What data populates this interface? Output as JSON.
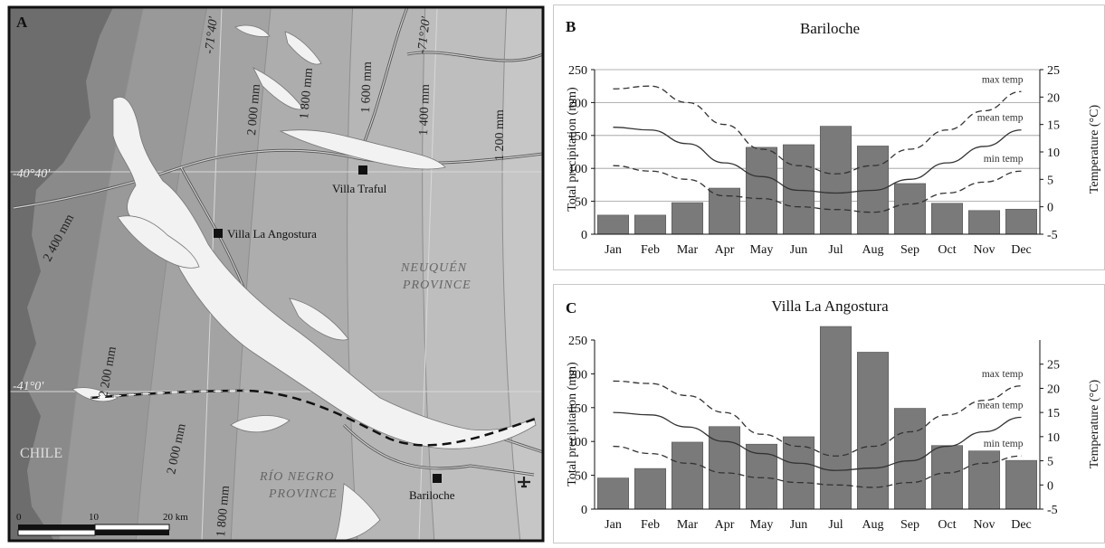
{
  "map": {
    "panel_letter": "A",
    "longitudes": [
      "-71°40'",
      "-71°20'"
    ],
    "latitudes": [
      "-40°40'",
      "-41°0'"
    ],
    "isohyets": [
      "2 400 mm",
      "2 200 mm",
      "2 000 mm",
      "1 800 mm",
      "1 600 mm",
      "1 400 mm",
      "1 200 mm",
      "2 000 mm",
      "1 800 mm"
    ],
    "places": [
      "Villa Traful",
      "Villa La Angostura",
      "Bariloche"
    ],
    "regions": [
      "NEUQUÉN",
      "PROVINCE",
      "RÍO NEGRO",
      "PROVINCE",
      "CHILE"
    ],
    "scale_labels": [
      "0",
      "10",
      "20 km"
    ],
    "colors": {
      "dark": "#6d6d6d",
      "mid": "#a8a8a8",
      "light": "#c8c8c8",
      "lake": "#f2f2f2"
    },
    "icons": [
      "airport-icon",
      "town-marker-icon"
    ]
  },
  "chart_data": [
    {
      "panel_letter": "B",
      "type": "bar",
      "title": "Bariloche",
      "categories": [
        "Jan",
        "Feb",
        "Mar",
        "Apr",
        "May",
        "Jun",
        "Jul",
        "Aug",
        "Sep",
        "Oct",
        "Nov",
        "Dec"
      ],
      "values": [
        29,
        29,
        48,
        70,
        132,
        136,
        164,
        134,
        77,
        47,
        36,
        38
      ],
      "ylabel": "Total precipitation (mm)",
      "ylim": [
        0,
        250
      ],
      "yticks": [
        "0",
        "50",
        "100",
        "150",
        "200",
        "250"
      ],
      "y2label": "Temperature (°C)",
      "y2lim": [
        -5,
        25
      ],
      "y2ticks": [
        "-5",
        "0",
        "5",
        "10",
        "15",
        "20",
        "25"
      ],
      "lines": [
        {
          "name": "max temp",
          "style": "dashed",
          "values": [
            21.5,
            22,
            19,
            15,
            10.5,
            7.5,
            6,
            7.5,
            10.5,
            14,
            17.5,
            21
          ]
        },
        {
          "name": "mean temp",
          "style": "solid",
          "values": [
            14.5,
            14,
            11.5,
            8,
            5.5,
            3,
            2.5,
            3,
            5,
            8,
            11,
            14
          ]
        },
        {
          "name": "min temp",
          "style": "dashed",
          "values": [
            7.5,
            6.5,
            5,
            2,
            1.5,
            0,
            -0.5,
            -1,
            0.5,
            2.5,
            4.5,
            6.5
          ]
        }
      ],
      "bar_color": "#7a7a7a",
      "grid": true
    },
    {
      "panel_letter": "C",
      "type": "bar",
      "title": "Villa La Angostura",
      "categories": [
        "Jan",
        "Feb",
        "Mar",
        "Apr",
        "May",
        "Jun",
        "Jul",
        "Aug",
        "Sep",
        "Oct",
        "Nov",
        "Dec"
      ],
      "values": [
        46,
        60,
        99,
        122,
        96,
        107,
        270,
        232,
        149,
        94,
        86,
        72
      ],
      "ylabel": "Total precipitation (mm)",
      "ylim": [
        0,
        250
      ],
      "yticks": [
        "0",
        "50",
        "100",
        "150",
        "200",
        "250"
      ],
      "y2label": "Temperature (°C)",
      "y2lim": [
        -5,
        30
      ],
      "y2ticks": [
        "-5",
        "0",
        "5",
        "10",
        "15",
        "20",
        "25"
      ],
      "lines": [
        {
          "name": "max temp",
          "style": "dashed",
          "values": [
            21.5,
            21,
            18.5,
            15,
            10.5,
            8,
            6,
            8,
            11,
            14.5,
            17.5,
            20.5
          ]
        },
        {
          "name": "mean temp",
          "style": "solid",
          "values": [
            15,
            14.5,
            12,
            9,
            6.5,
            4.5,
            3,
            3.5,
            5,
            8,
            11,
            14
          ]
        },
        {
          "name": "min temp",
          "style": "dashed",
          "values": [
            8,
            6.5,
            4.5,
            2.5,
            1.5,
            0.5,
            0,
            -0.5,
            0.5,
            2.5,
            4.5,
            6
          ]
        }
      ],
      "bar_color": "#7a7a7a",
      "grid": false
    }
  ]
}
